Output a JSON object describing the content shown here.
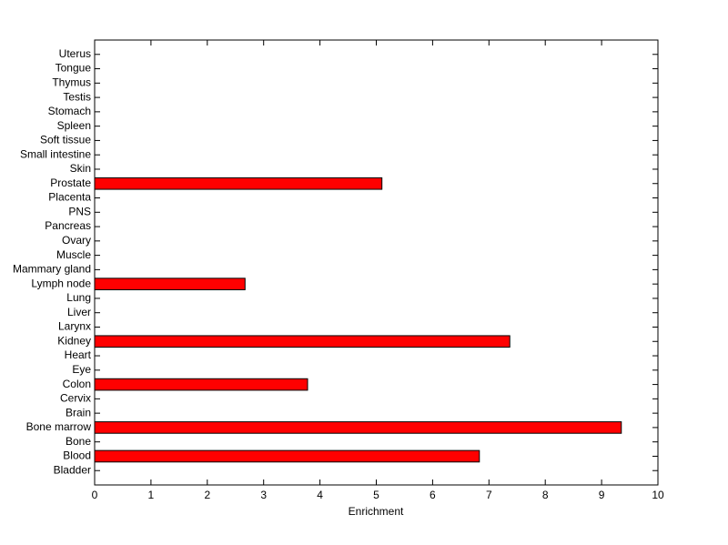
{
  "chart_data": {
    "type": "barh",
    "xlabel": "Enrichment",
    "categories": [
      "Bladder",
      "Blood",
      "Bone",
      "Bone marrow",
      "Brain",
      "Cervix",
      "Colon",
      "Eye",
      "Heart",
      "Kidney",
      "Larynx",
      "Liver",
      "Lung",
      "Lymph node",
      "Mammary gland",
      "Muscle",
      "Ovary",
      "Pancreas",
      "PNS",
      "Placenta",
      "Prostate",
      "Skin",
      "Small intestine",
      "Soft tissue",
      "Spleen",
      "Stomach",
      "Testis",
      "Thymus",
      "Tongue",
      "Uterus"
    ],
    "values": [
      0,
      6.83,
      0,
      9.35,
      0,
      0,
      3.78,
      0,
      0,
      7.37,
      0,
      0,
      0,
      2.67,
      0,
      0,
      0,
      0,
      0,
      0,
      5.1,
      0,
      0,
      0,
      0,
      0,
      0,
      0,
      0,
      0
    ],
    "color": "#ff0000",
    "xlim": [
      0,
      10
    ],
    "xticks": [
      0,
      1,
      2,
      3,
      4,
      5,
      6,
      7,
      8,
      9,
      10
    ]
  }
}
